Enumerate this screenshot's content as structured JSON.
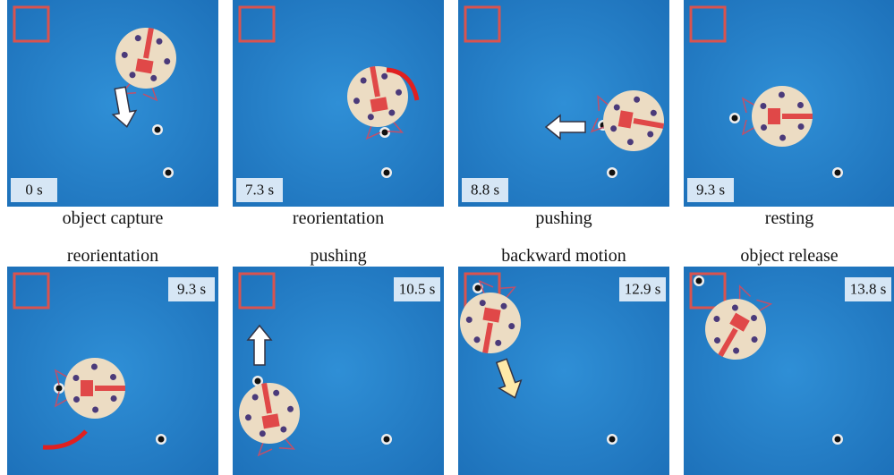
{
  "panels": [
    {
      "time": "0 s",
      "caption": "object capture"
    },
    {
      "time": "7.3 s",
      "caption": "reorientation"
    },
    {
      "time": "8.8 s",
      "caption": "pushing"
    },
    {
      "time": "9.3 s",
      "caption": "resting"
    },
    {
      "time": "9.3 s",
      "caption": "reorientation"
    },
    {
      "time": "10.5 s",
      "caption": "pushing"
    },
    {
      "time": "12.9 s",
      "caption": "backward motion"
    },
    {
      "time": "13.8 s",
      "caption": "object release"
    }
  ]
}
